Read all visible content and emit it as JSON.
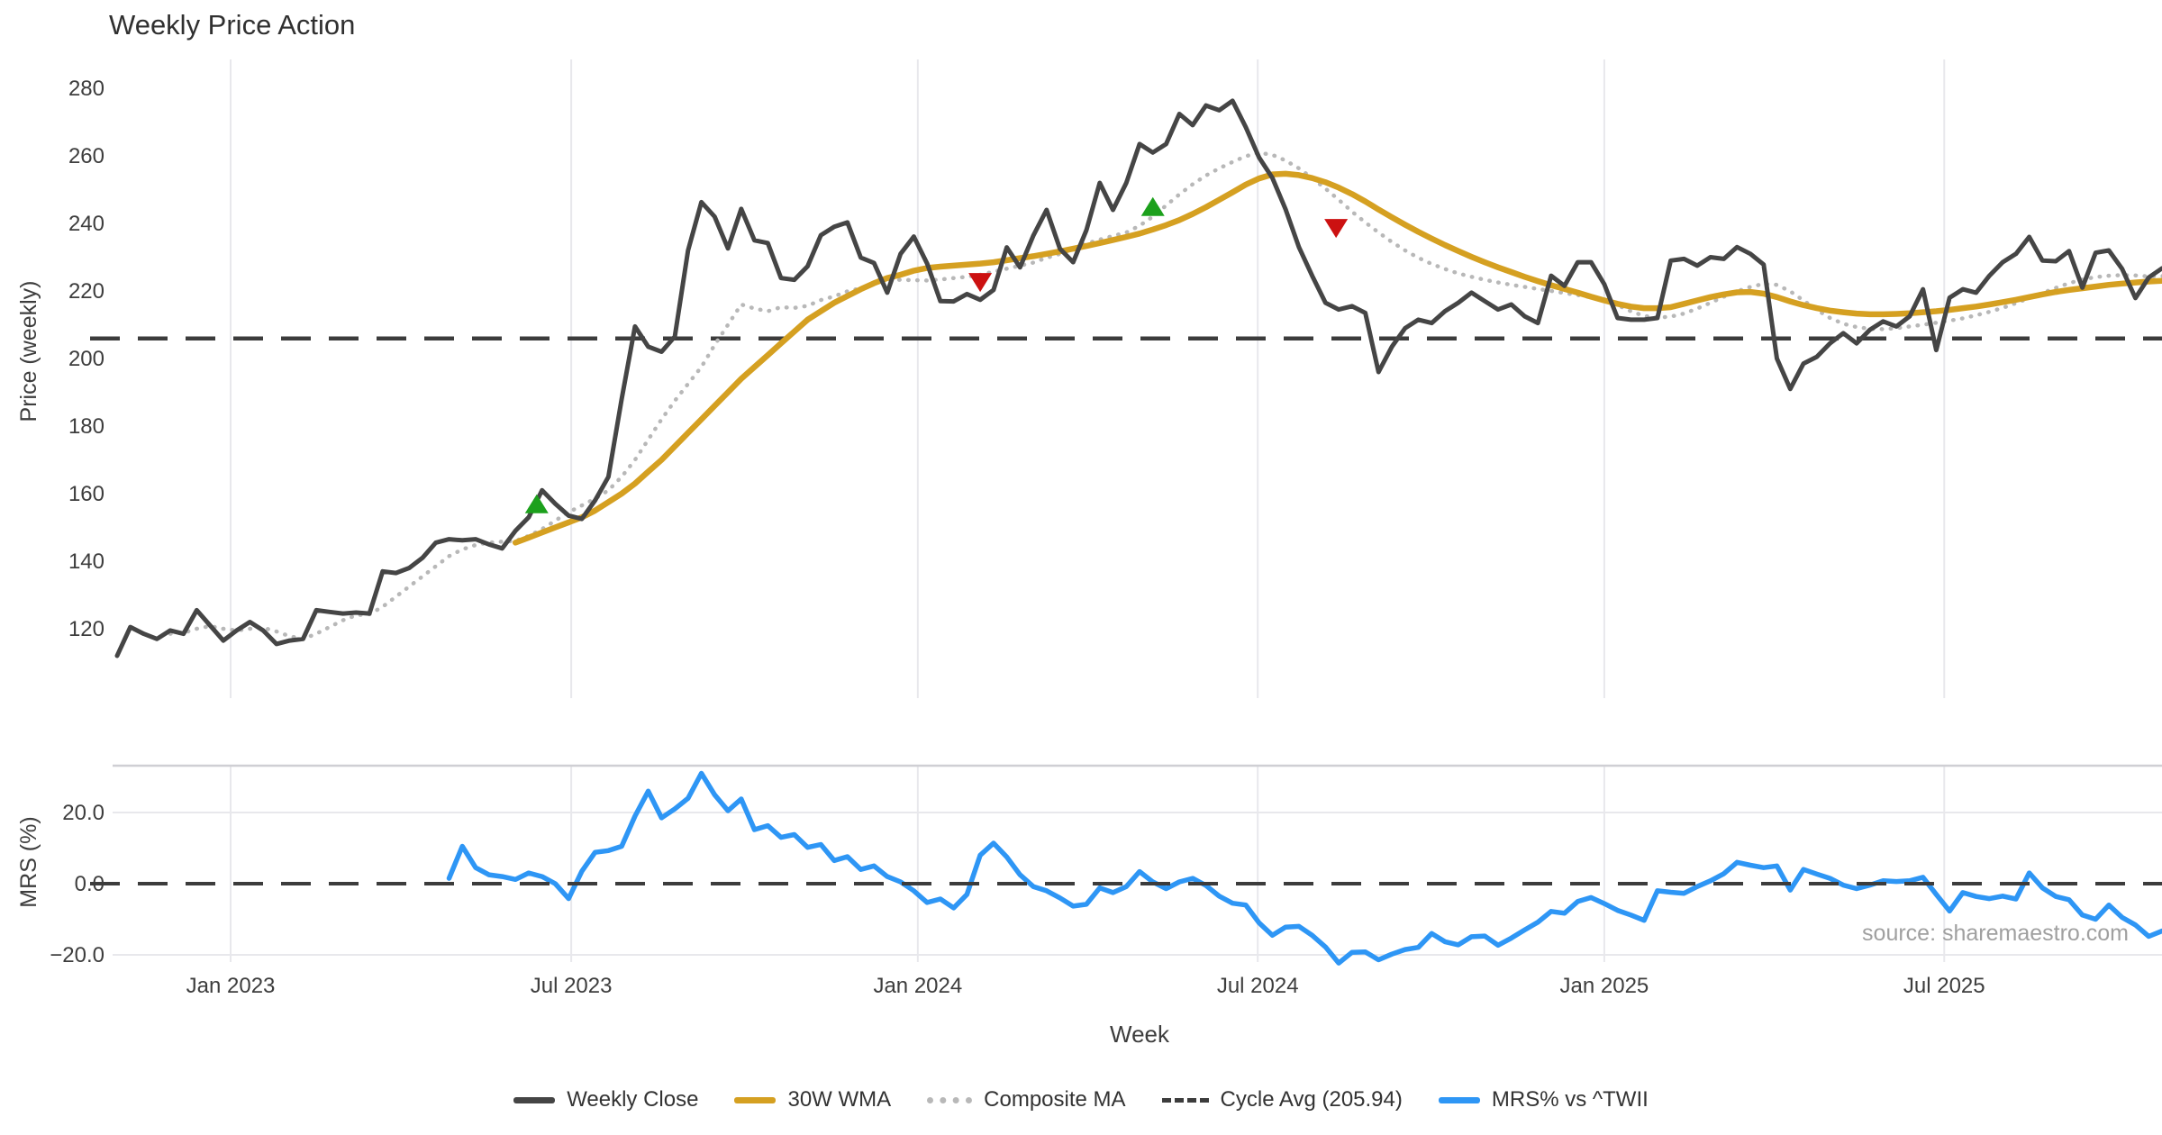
{
  "title": "Weekly Price Action",
  "price_panel": {
    "ylabel": "Price (weekly)"
  },
  "mrs_panel": {
    "ylabel": "MRS (%)"
  },
  "xaxis": {
    "label": "Week"
  },
  "source": "source: sharemaestro.com",
  "legend": {
    "items": [
      {
        "label": "Weekly Close",
        "style": "solid",
        "color": "#454545"
      },
      {
        "label": "30W WMA",
        "style": "solid",
        "color": "#d5a021"
      },
      {
        "label": "Composite MA",
        "style": "dotted",
        "color": "#b8b8b8"
      },
      {
        "label": "Cycle Avg (205.94)",
        "style": "dashed",
        "color": "#3c3c3c"
      },
      {
        "label": "MRS% vs ^TWII",
        "style": "solid",
        "color": "#2e96f5"
      }
    ]
  },
  "colors": {
    "close": "#454545",
    "wma": "#d5a021",
    "composite": "#b8b8b8",
    "cycle": "#3c3c3c",
    "mrs": "#2e96f5",
    "buy_marker": "#1ca01c",
    "sell_marker": "#cc1111",
    "grid": "#e8e8ec",
    "spine": "#cfcfd4",
    "tick_text": "#3d3d3d",
    "title_text": "#303030",
    "source_text": "#a0a0a0"
  },
  "chart_data": {
    "type": "line",
    "title": "Weekly Price Action",
    "xlabel": "Week",
    "x_unit": "weekly index, 0 = first week shown (Nov 2022), 154 = last week (late Oct 2025)",
    "cycle_avg": 205.94,
    "price_ylim": [
      108,
      288
    ],
    "mrs_ylim": [
      -24,
      33
    ],
    "price_ticks": [
      280,
      260,
      240,
      220,
      200,
      180,
      160,
      140,
      120
    ],
    "mrs_ticks": [
      {
        "label": "20.0",
        "value": 20
      },
      {
        "label": "0.0",
        "value": 0
      },
      {
        "label": "−20.0",
        "value": -20
      }
    ],
    "x_ticks": [
      {
        "label": "Jan 2023",
        "week": 8.55
      },
      {
        "label": "Jul 2023",
        "week": 34.2
      },
      {
        "label": "Jan 2024",
        "week": 60.3
      },
      {
        "label": "Jul 2024",
        "week": 85.9
      },
      {
        "label": "Jan 2025",
        "week": 112.0
      },
      {
        "label": "Jul 2025",
        "week": 137.6
      }
    ],
    "series": {
      "weekly_close": {
        "name": "Weekly Close",
        "start": 0,
        "values": [
          112,
          120.5,
          118.5,
          117,
          119.5,
          118.5,
          125.5,
          121,
          116.5,
          119.5,
          122,
          119.5,
          115.5,
          116.5,
          117,
          125.5,
          125,
          124.5,
          124.8,
          124.5,
          137,
          136.5,
          138,
          141,
          145.5,
          146.5,
          146.2,
          146.5,
          145,
          143.8,
          149,
          153,
          161,
          157,
          153.5,
          152.5,
          158,
          165,
          188,
          209.5,
          203.5,
          202,
          206.5,
          232,
          246.3,
          242,
          232.6,
          244.3,
          235,
          234.2,
          223.8,
          223.3,
          227.3,
          236.5,
          239,
          240.3,
          229.9,
          228.3,
          219.5,
          231,
          236.1,
          228.1,
          217,
          216.9,
          219.1,
          217.4,
          220.3,
          232.9,
          227,
          236.4,
          244,
          232.5,
          228.5,
          238,
          252,
          244,
          252,
          263.5,
          261,
          263.5,
          272.4,
          269.1,
          274.9,
          273.5,
          276.3,
          268.5,
          259.5,
          253.5,
          244.2,
          233,
          224.5,
          216.5,
          214.5,
          215.5,
          213.5,
          196,
          203.5,
          209,
          211.5,
          210.5,
          214,
          216.5,
          219.5,
          217,
          214.5,
          216,
          212.5,
          210.5,
          224.5,
          221.5,
          228.5,
          228.5,
          222,
          212,
          211.5,
          211.5,
          212,
          229,
          229.5,
          227.5,
          230,
          229.5,
          233,
          231,
          227.8,
          200,
          191,
          198.5,
          200.5,
          204.5,
          207.5,
          204.5,
          208.5,
          211,
          209.5,
          212.5,
          220.5,
          202.5,
          218,
          220.5,
          219.5,
          224.5,
          228.5,
          231,
          236,
          229,
          228.8,
          231.8,
          221,
          231.3,
          232,
          226.5,
          217.9,
          224,
          226.7
        ]
      },
      "wma_30w": {
        "name": "30W WMA",
        "start": 30,
        "values": [
          145.5,
          147,
          148.5,
          150,
          151.5,
          153,
          155,
          157.5,
          160,
          163,
          166.5,
          170,
          174,
          178,
          182,
          186,
          190,
          194,
          197.5,
          201,
          204.5,
          208,
          211.5,
          214,
          216.5,
          218.5,
          220.5,
          222.3,
          223.8,
          224.8,
          226,
          226.8,
          227.2,
          227.5,
          227.8,
          228.1,
          228.5,
          229.1,
          229.7,
          230.3,
          231,
          231.7,
          232.5,
          233.3,
          234.2,
          235.1,
          236,
          237,
          238.2,
          239.5,
          241,
          242.8,
          244.8,
          247,
          249.2,
          251.5,
          253.3,
          254.5,
          254.7,
          254.3,
          253.4,
          252.2,
          250.6,
          248.7,
          246.5,
          244.1,
          241.8,
          239.6,
          237.5,
          235.5,
          233.6,
          231.8,
          230.1,
          228.5,
          227,
          225.6,
          224.2,
          222.9,
          221.7,
          220.6,
          219.5,
          218.3,
          217.2,
          216.2,
          215.4,
          214.9,
          214.9,
          215.2,
          216.2,
          217.2,
          218.2,
          219,
          219.6,
          219.7,
          219.2,
          218.2,
          216.9,
          215.8,
          214.9,
          214.2,
          213.7,
          213.3,
          213.1,
          213.1,
          213.2,
          213.4,
          213.7,
          214,
          214.4,
          214.9,
          215.4,
          216,
          216.7,
          217.4,
          218.2,
          219,
          219.7,
          220.3,
          220.8,
          221.3,
          221.8,
          222.2,
          222.5,
          222.8,
          223
        ]
      },
      "composite_ma": {
        "name": "Composite MA",
        "start": 4,
        "values": [
          118.5,
          118.8,
          120,
          120.8,
          120,
          119.5,
          120,
          120.3,
          119.2,
          117.8,
          117,
          118.5,
          120.5,
          122.5,
          124,
          124.3,
          126.5,
          129.5,
          132.5,
          135.5,
          138.5,
          141.5,
          143.5,
          144.8,
          145.5,
          145.8,
          146,
          147.5,
          149.5,
          152,
          154.5,
          156.5,
          158.5,
          161,
          165,
          170,
          176,
          182,
          187.5,
          192.5,
          197.5,
          204,
          210,
          216,
          214.8,
          214,
          215.2,
          215,
          215.6,
          217.3,
          218.4,
          219.9,
          220.8,
          222,
          223.1,
          223.3,
          223.2,
          223.1,
          223.4,
          223.8,
          224.2,
          224.8,
          225.7,
          226.6,
          227.5,
          228.4,
          229.8,
          231,
          232.5,
          234,
          235.2,
          236.3,
          237.3,
          239.3,
          242,
          245.3,
          248.6,
          251.6,
          254.2,
          256.3,
          258.2,
          259.9,
          260.9,
          260.3,
          258.6,
          256.3,
          253.4,
          250.3,
          247,
          243.5,
          240.3,
          237.3,
          234.5,
          232,
          229.8,
          228,
          226.5,
          225.2,
          224.2,
          223.3,
          222.5,
          221.8,
          221.2,
          220.6,
          220,
          219.4,
          218.8,
          218.1,
          217.2,
          215.8,
          214,
          212.6,
          212.1,
          212.4,
          213.3,
          214.8,
          216.5,
          218.3,
          219.9,
          221.2,
          222.1,
          221.8,
          219.9,
          217.2,
          214.4,
          212,
          210.3,
          209.3,
          208.8,
          208.7,
          209,
          209.5,
          210,
          210.6,
          211.2,
          211.9,
          212.8,
          213.8,
          215,
          216.4,
          217.9,
          219.4,
          220.9,
          222.3,
          223.4,
          224.1,
          224.5,
          224.7,
          224.6,
          224.3,
          224.4,
          224.7
        ]
      },
      "mrs_pct": {
        "name": "MRS% vs ^TWII",
        "start": 25,
        "values": [
          1.5,
          10.5,
          4.5,
          2.5,
          2.0,
          1.2,
          3.0,
          2.0,
          0.0,
          -4.2,
          3.5,
          8.8,
          9.3,
          10.5,
          19.0,
          26.0,
          18.5,
          21.0,
          24.0,
          31.0,
          25.0,
          20.5,
          23.8,
          15.2,
          16.3,
          13.0,
          13.8,
          10.2,
          11.0,
          6.5,
          7.6,
          4.0,
          5.0,
          2.0,
          0.5,
          -2.0,
          -5.3,
          -4.3,
          -6.8,
          -3.0,
          8.0,
          11.4,
          7.5,
          2.5,
          -0.8,
          -2.0,
          -4.0,
          -6.3,
          -5.8,
          -1.2,
          -2.5,
          -0.8,
          3.4,
          0.5,
          -1.4,
          0.5,
          1.5,
          -0.5,
          -3.5,
          -5.5,
          -6.0,
          -11.0,
          -14.5,
          -12.2,
          -12.0,
          -14.5,
          -17.8,
          -22.3,
          -19.3,
          -19.2,
          -21.4,
          -19.8,
          -18.5,
          -17.9,
          -14.0,
          -16.3,
          -17.2,
          -14.9,
          -14.7,
          -17.3,
          -15.3,
          -13.0,
          -10.8,
          -7.8,
          -8.3,
          -5.0,
          -3.9,
          -5.6,
          -7.5,
          -8.8,
          -10.3,
          -2.0,
          -2.4,
          -2.7,
          -0.8,
          0.8,
          2.8,
          6.0,
          5.2,
          4.5,
          5.0,
          -1.8,
          4.0,
          2.7,
          1.5,
          -0.4,
          -1.4,
          -0.4,
          0.8,
          0.6,
          0.8,
          1.8,
          -3.0,
          -7.7,
          -2.5,
          -3.6,
          -4.2,
          -3.5,
          -4.3,
          3.0,
          -1.2,
          -3.6,
          -4.5,
          -8.8,
          -10.0,
          -6.0,
          -9.5,
          -11.6,
          -14.8,
          -13.3
        ]
      }
    },
    "markers": {
      "buy": [
        {
          "week": 31.6,
          "price": 157
        },
        {
          "week": 78,
          "price": 245
        }
      ],
      "sell": [
        {
          "week": 65,
          "price": 222.5
        },
        {
          "week": 91.8,
          "price": 238.5
        }
      ]
    }
  }
}
